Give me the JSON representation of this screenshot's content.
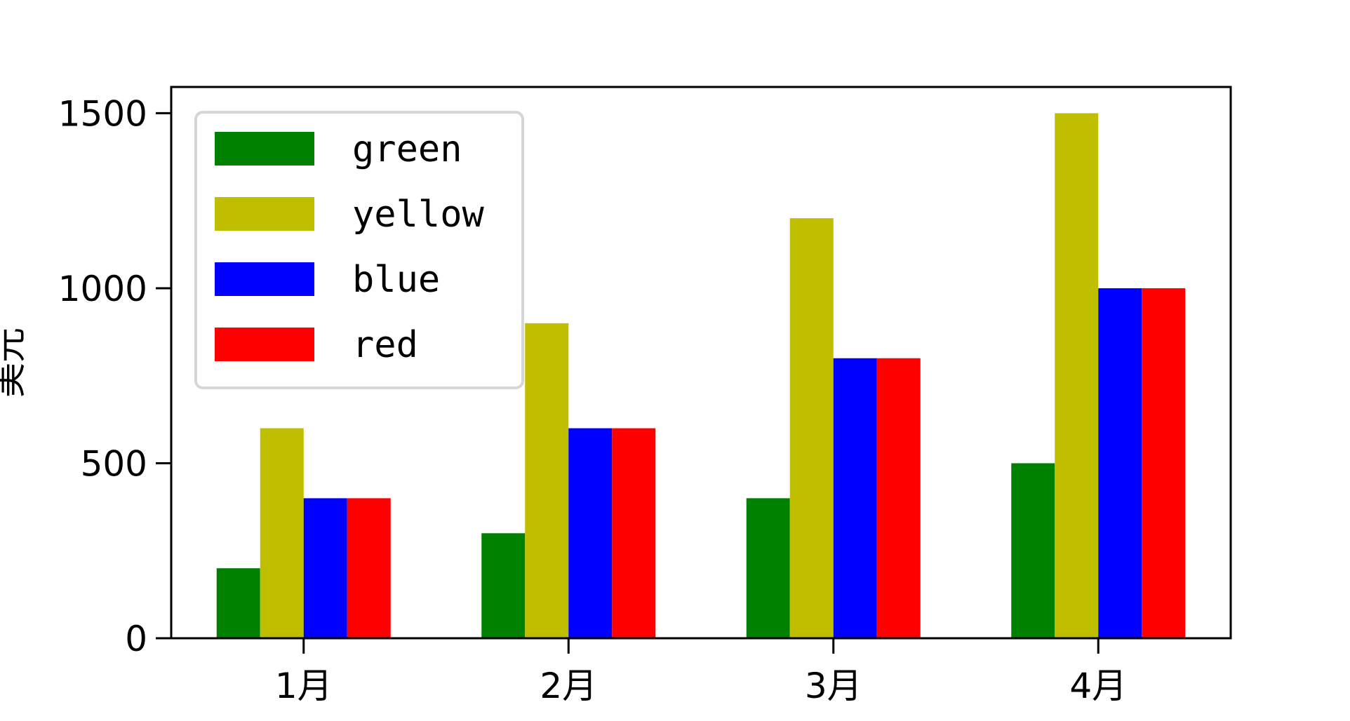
{
  "chart_data": {
    "type": "bar",
    "title": "",
    "xlabel": "",
    "ylabel": "美元",
    "categories": [
      "1月",
      "2月",
      "3月",
      "4月"
    ],
    "series": [
      {
        "name": "green",
        "color": "#008000",
        "values": [
          200,
          300,
          400,
          500
        ]
      },
      {
        "name": "yellow",
        "color": "#bfbf00",
        "values": [
          600,
          900,
          1200,
          1500
        ]
      },
      {
        "name": "blue",
        "color": "#0000ff",
        "values": [
          400,
          600,
          800,
          1000
        ]
      },
      {
        "name": "red",
        "color": "#ff0000",
        "values": [
          400,
          600,
          800,
          1000
        ]
      }
    ],
    "ylim": [
      0,
      1575
    ],
    "yticks": [
      0,
      500,
      1000,
      1500
    ],
    "grid": false,
    "legend": "top-left"
  }
}
